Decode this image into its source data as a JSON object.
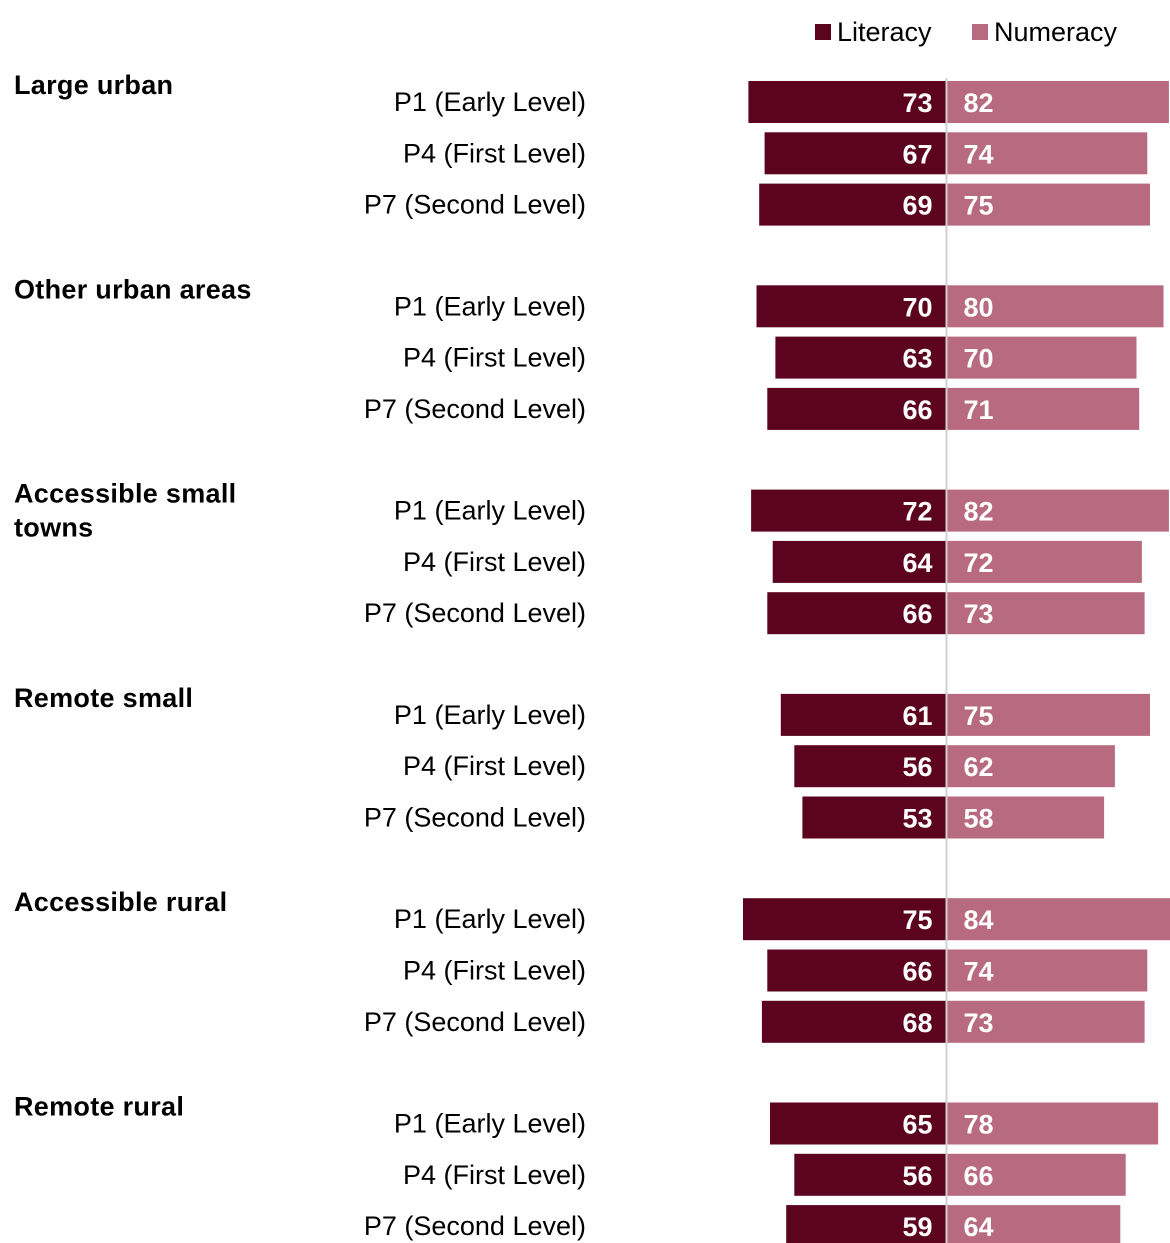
{
  "chart_data": {
    "type": "bar",
    "orientation": "horizontal-diverging",
    "legend": {
      "placement": "top-right",
      "entries": [
        {
          "name": "Literacy",
          "color": "#5c0320"
        },
        {
          "name": "Numeracy",
          "color": "#b86b80"
        }
      ]
    },
    "colors": {
      "literacy": "#5c0320",
      "numeracy": "#b86b80",
      "axis": "#d0d0d0"
    },
    "series": [
      {
        "name": "Literacy",
        "color": "#5c0320"
      },
      {
        "name": "Numeracy",
        "color": "#b86b80"
      }
    ],
    "groups": [
      {
        "label": "Large urban",
        "rows": [
          {
            "label": "P1 (Early Level)",
            "literacy": 73,
            "numeracy": 82
          },
          {
            "label": "P4 (First Level)",
            "literacy": 67,
            "numeracy": 74
          },
          {
            "label": "P7 (Second Level)",
            "literacy": 69,
            "numeracy": 75
          }
        ]
      },
      {
        "label": "Other urban areas",
        "rows": [
          {
            "label": "P1 (Early Level)",
            "literacy": 70,
            "numeracy": 80
          },
          {
            "label": "P4 (First Level)",
            "literacy": 63,
            "numeracy": 70
          },
          {
            "label": "P7 (Second Level)",
            "literacy": 66,
            "numeracy": 71
          }
        ]
      },
      {
        "label": "Accessible small towns",
        "rows": [
          {
            "label": "P1 (Early Level)",
            "literacy": 72,
            "numeracy": 82
          },
          {
            "label": "P4 (First Level)",
            "literacy": 64,
            "numeracy": 72
          },
          {
            "label": "P7 (Second Level)",
            "literacy": 66,
            "numeracy": 73
          }
        ]
      },
      {
        "label": "Remote small",
        "rows": [
          {
            "label": "P1 (Early Level)",
            "literacy": 61,
            "numeracy": 75
          },
          {
            "label": "P4 (First Level)",
            "literacy": 56,
            "numeracy": 62
          },
          {
            "label": "P7 (Second Level)",
            "literacy": 53,
            "numeracy": 58
          }
        ]
      },
      {
        "label": "Accessible rural",
        "rows": [
          {
            "label": "P1 (Early Level)",
            "literacy": 75,
            "numeracy": 84
          },
          {
            "label": "P4 (First Level)",
            "literacy": 66,
            "numeracy": 74
          },
          {
            "label": "P7 (Second Level)",
            "literacy": 68,
            "numeracy": 73
          }
        ]
      },
      {
        "label": "Remote rural",
        "rows": [
          {
            "label": "P1 (Early Level)",
            "literacy": 65,
            "numeracy": 78
          },
          {
            "label": "P4 (First Level)",
            "literacy": 56,
            "numeracy": 66
          },
          {
            "label": "P7 (Second Level)",
            "literacy": 59,
            "numeracy": 64
          }
        ]
      }
    ]
  }
}
